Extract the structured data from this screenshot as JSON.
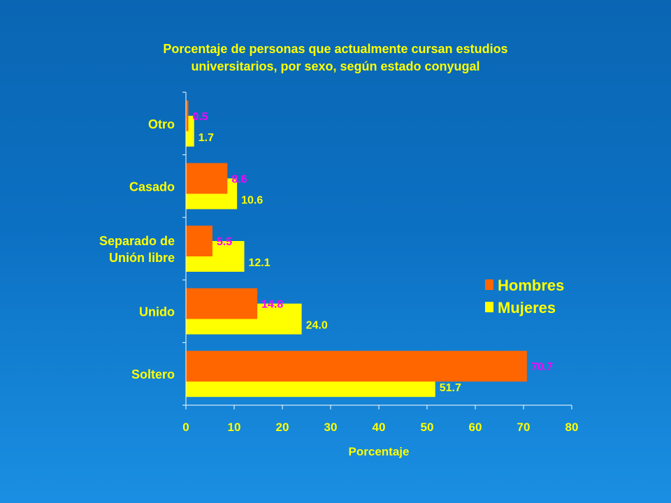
{
  "colors": {
    "background": "#0a66b3",
    "hombres": "#ff6600",
    "mujeres": "#ffff00",
    "hombres_label": "#ff00ff",
    "mujeres_label": "#ffff00",
    "text": "#ffff00",
    "axis": "#ffffff"
  },
  "chart_data": {
    "type": "bar",
    "orientation": "horizontal",
    "title": "Porcentaje de personas que actualmente cursan estudios universitarios, por sexo, según estado conyugal",
    "title_lines": [
      "Porcentaje de personas que actualmente cursan estudios",
      "universitarios, por sexo, según estado conyugal"
    ],
    "categories": [
      [
        "Otro"
      ],
      [
        "Casado"
      ],
      [
        "Separado de",
        "Unión libre"
      ],
      [
        "Unido"
      ],
      [
        "Soltero"
      ]
    ],
    "series": [
      {
        "name": "Hombres",
        "values": [
          0.5,
          8.6,
          5.5,
          14.8,
          70.7
        ],
        "labels": [
          "0.5",
          "8.6",
          "5.5",
          "14.8",
          "70.7"
        ]
      },
      {
        "name": "Mujeres",
        "values": [
          1.7,
          10.6,
          12.1,
          24.0,
          51.7
        ],
        "labels": [
          "1.7",
          "10.6",
          "12.1",
          "24.0",
          "51.7"
        ]
      }
    ],
    "xlabel": "Porcentaje",
    "ylabel": "",
    "xlim": [
      0,
      80
    ],
    "xticks": [
      0,
      10,
      20,
      30,
      40,
      50,
      60,
      70,
      80
    ],
    "grid": false,
    "legend_position": "right"
  }
}
